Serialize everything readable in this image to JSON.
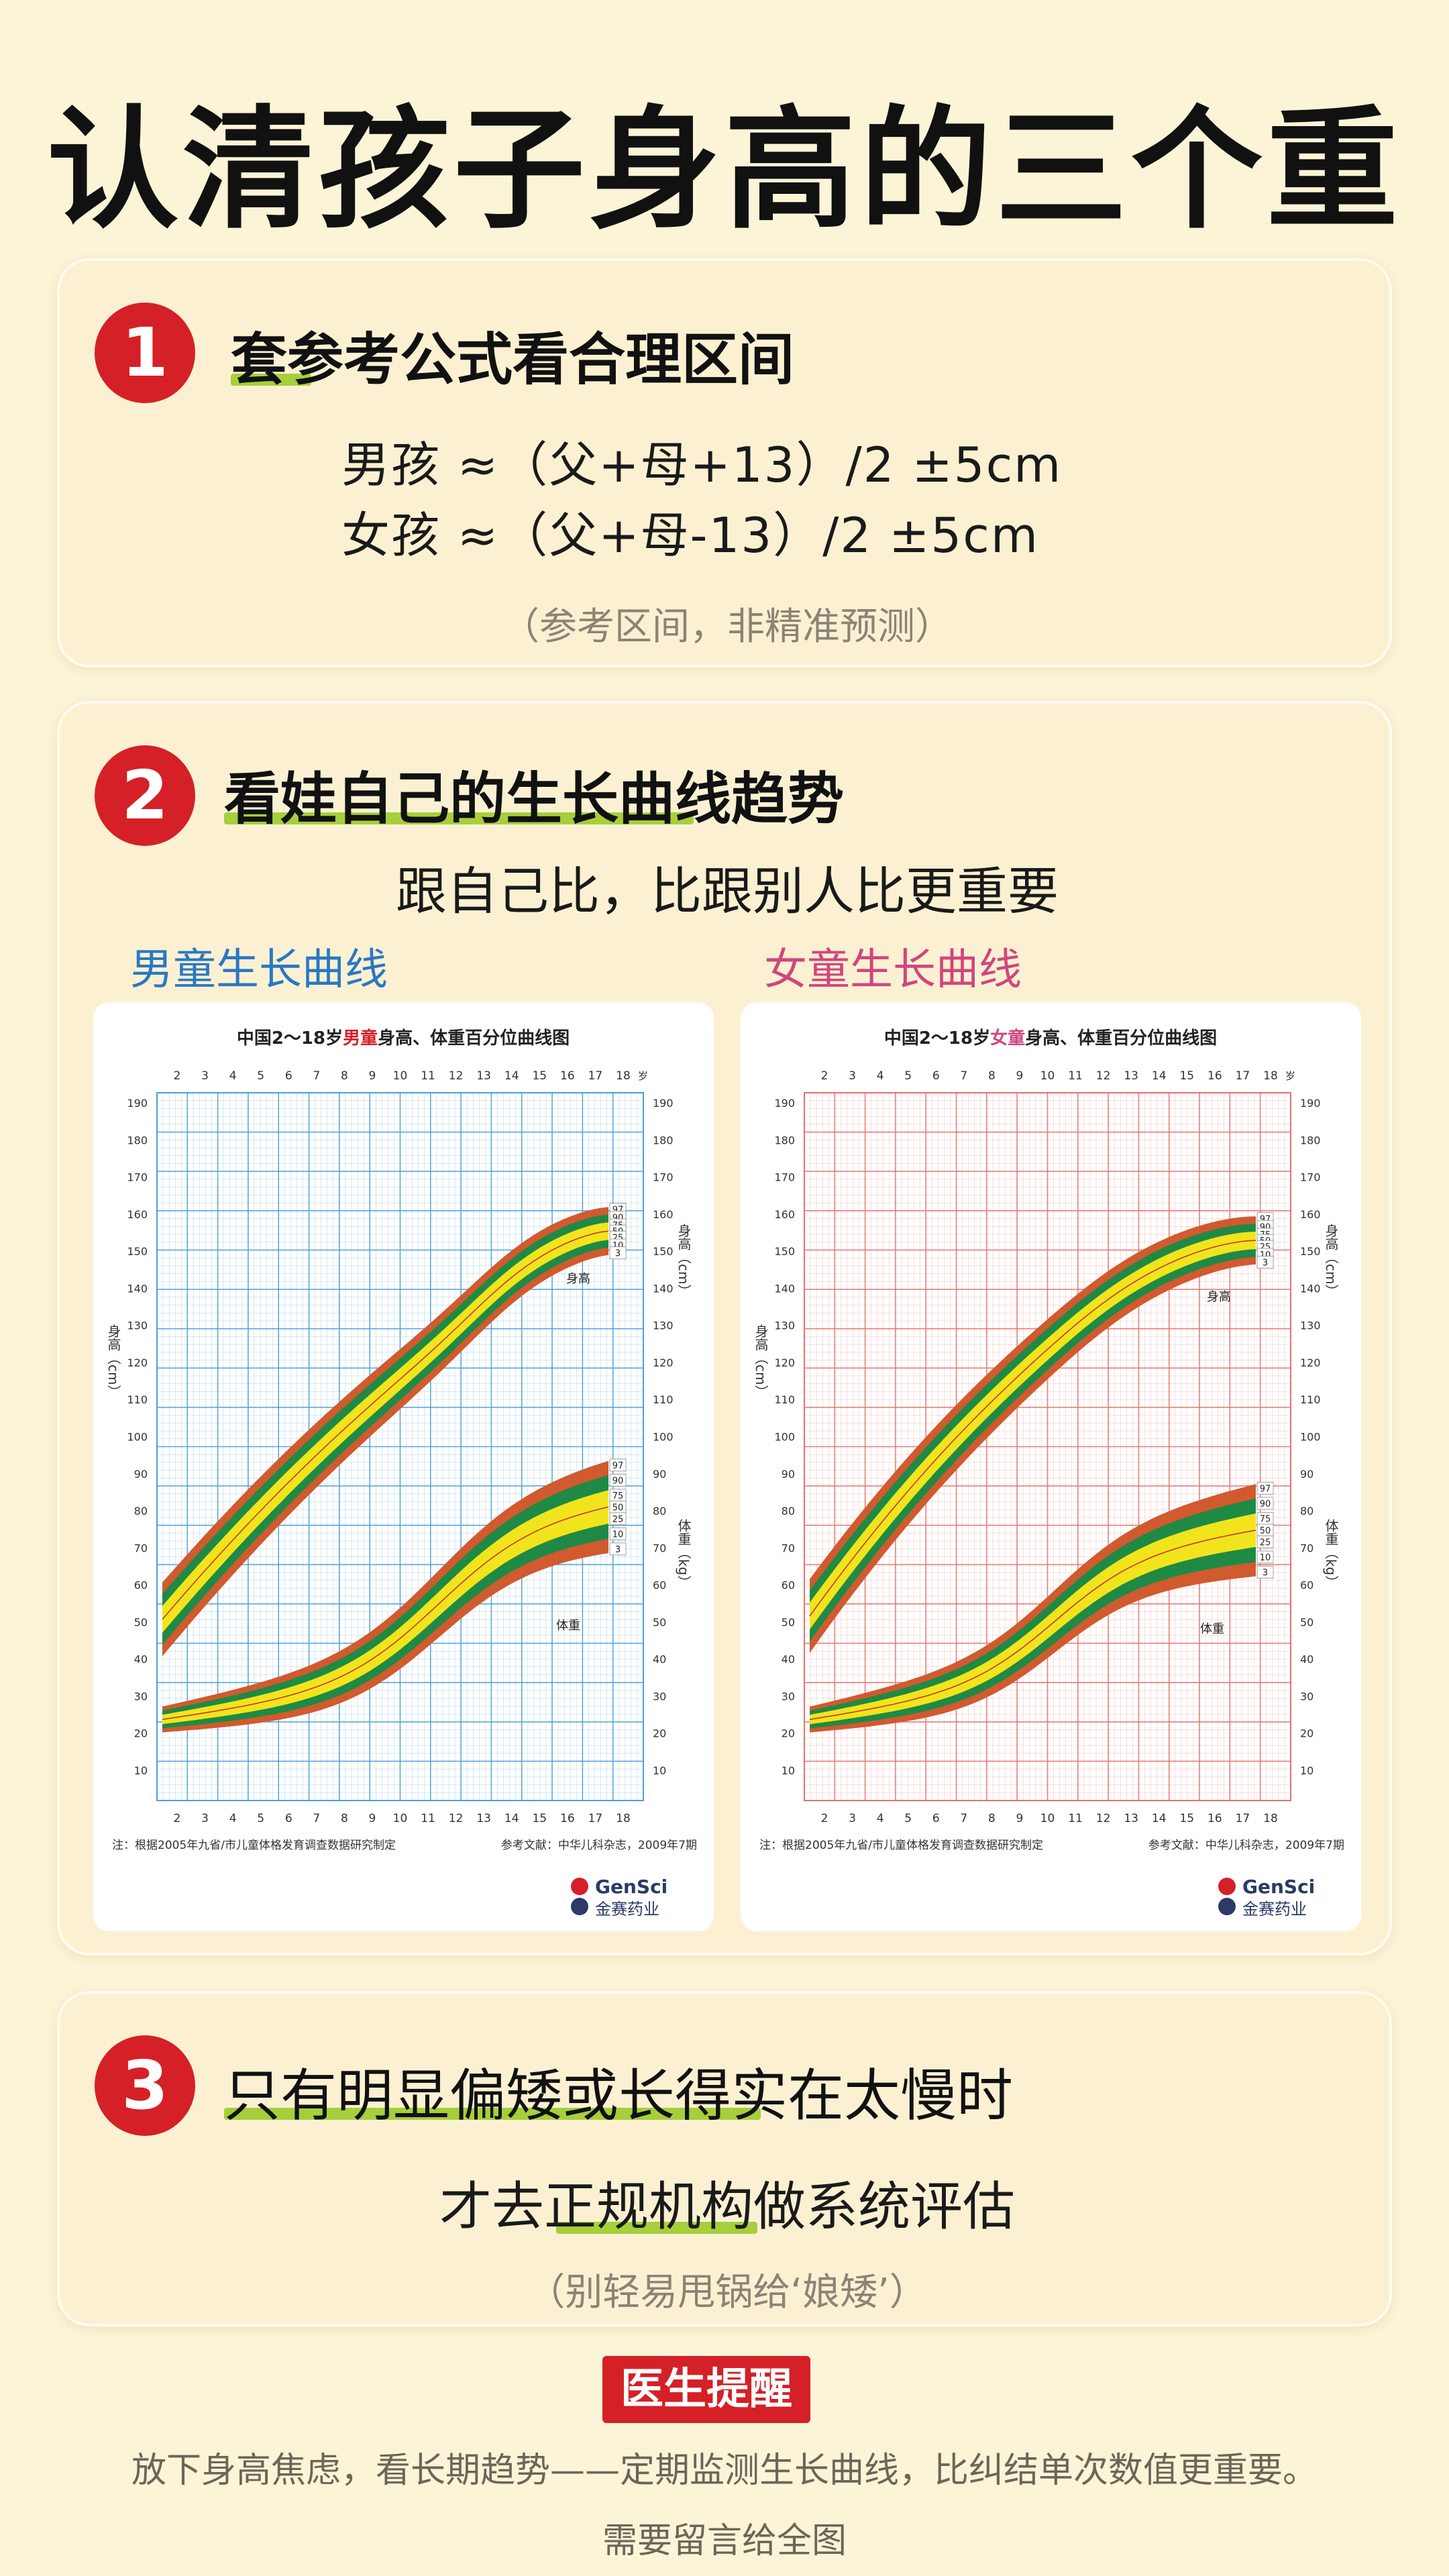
{
  "title": "认清孩子身高的三个重点",
  "section1": {
    "number": "1",
    "title": "套参考公式看合理区间",
    "formula_boy": "男孩 ≈（父+母+13）/2 ±5cm",
    "formula_girl": "女孩 ≈（父+母-13）/2 ±5cm",
    "note": "（参考区间，非精准预测）"
  },
  "section2": {
    "number": "2",
    "title": "看娃自己的生长曲线趋势",
    "subtitle": "跟自己比，比跟别人比更重要",
    "boy_label": "男童生长曲线",
    "girl_label": "女童生长曲线",
    "boy_chart": {
      "heading_pre": "中国2～18岁",
      "heading_hl": "男童",
      "heading_post": "身高、体重百分位曲线图",
      "height_label": "身高",
      "weight_label": "体重",
      "footnote_left": "注：根据2005年九省/市儿童体格发育调查数据研究制定",
      "footnote_right": "参考文献：中华儿科杂志，2009年7期",
      "logo_en": "GenSci",
      "logo_cn": "金赛药业"
    },
    "girl_chart": {
      "heading_pre": "中国2～18岁",
      "heading_hl": "女童",
      "heading_post": "身高、体重百分位曲线图",
      "height_label": "身高",
      "weight_label": "体重",
      "footnote_left": "注：根据2005年九省/市儿童体格发育调查数据研究制定",
      "footnote_right": "参考文献：中华儿科杂志，2009年7期",
      "logo_en": "GenSci",
      "logo_cn": "金赛药业"
    },
    "age_ticks": [
      "2",
      "3",
      "4",
      "5",
      "6",
      "7",
      "8",
      "9",
      "10",
      "11",
      "12",
      "13",
      "14",
      "15",
      "16",
      "17",
      "18"
    ],
    "age_unit": "岁",
    "height_ticks": [
      "190",
      "180",
      "170",
      "160",
      "150",
      "140",
      "130",
      "120",
      "110",
      "100",
      "90",
      "80",
      "70",
      "60",
      "50",
      "40",
      "30",
      "20",
      "10"
    ],
    "percentiles": [
      "97",
      "90",
      "75",
      "50",
      "25",
      "10",
      "3"
    ],
    "axis_title_height": "身高（cm）",
    "axis_title_weight": "体重（kg）"
  },
  "section3": {
    "number": "3",
    "title": "只有明显偏矮或长得实在太慢时",
    "subtitle": "才去正规机构做系统评估",
    "note": "（别轻易甩锅给‘娘矮’）"
  },
  "reminder": {
    "badge": "医生提醒",
    "text": "放下身高焦虑，看长期趋势——定期监测生长曲线，比纠结单次数值更重要。",
    "footer": "需要留言给全图"
  },
  "colors": {
    "red": "#d52027",
    "green_underline": "#a6cf3b",
    "boy_blue": "#2a78c2",
    "girl_pink": "#d1457e",
    "band_outer": "#d15a2e",
    "band_mid": "#1f8a45",
    "band_inner": "#f2e41c"
  }
}
